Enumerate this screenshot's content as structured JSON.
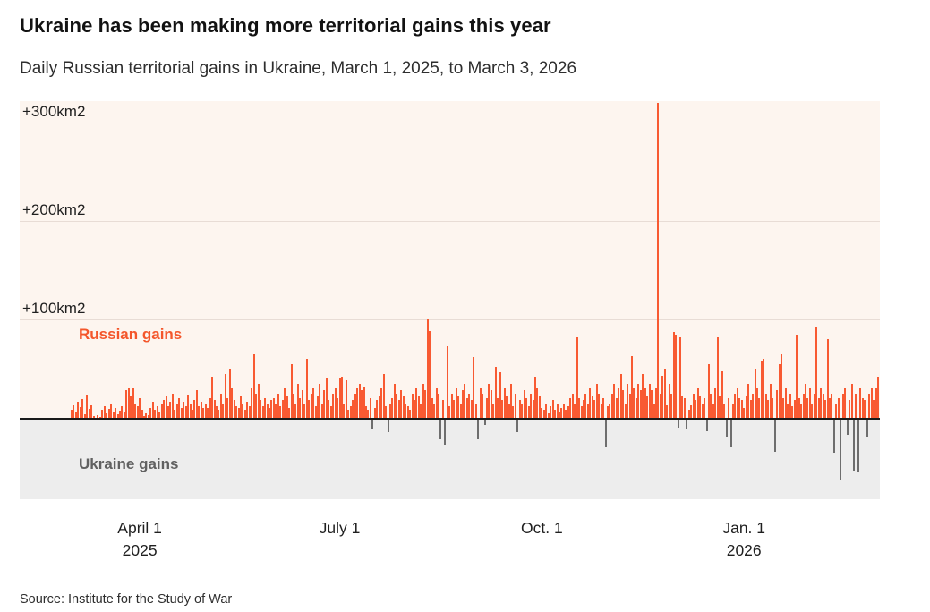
{
  "header": {
    "title": "Ukraine has been making more territorial gains this year",
    "subtitle": "Daily Russian territorial gains in Ukraine, March 1, 2025, to March 3, 2026"
  },
  "source": "Source: Institute for the Study of War",
  "colors": {
    "russian_bar": "#f85a32",
    "ukraine_bar": "#6e6e6e",
    "positive_area_bg": "#fdf5ef",
    "negative_area_bg": "#ededed",
    "gridline": "#e8dcd5",
    "zero_line": "#1a1a1a"
  },
  "chart_data": {
    "type": "bar",
    "title": "Ukraine has been making more territorial gains this year",
    "subtitle": "Daily Russian territorial gains in Ukraine, March 1, 2025, to March 3, 2026",
    "unit": "km2",
    "value_semantics": "daily net territorial change; positive = Russian gains (orange), negative = Ukraine gains (gray)",
    "x_range": [
      "March 1, 2025",
      "March 3, 2026"
    ],
    "ylim": [
      -100,
      330
    ],
    "grid": "horizontal",
    "legend": {
      "positive_label": "Russian gains",
      "negative_label": "Ukraine gains"
    },
    "yticks": [
      {
        "label": "+300km2",
        "km": 300
      },
      {
        "label": "+200km2",
        "km": 200
      },
      {
        "label": "+100km2",
        "km": 100
      }
    ],
    "xticks": [
      {
        "label": "April 1",
        "sub": "2025",
        "day": 31
      },
      {
        "label": "July 1",
        "sub": "",
        "day": 122
      },
      {
        "label": "Oct. 1",
        "sub": "",
        "day": 214
      },
      {
        "label": "Jan. 1",
        "sub": "2026",
        "day": 306
      }
    ],
    "values": [
      8,
      13,
      6,
      16,
      11,
      19,
      4,
      24,
      9,
      13,
      2,
      0,
      3,
      1,
      8,
      12,
      5,
      9,
      14,
      6,
      10,
      4,
      7,
      12,
      6,
      28,
      30,
      22,
      30,
      14,
      12,
      20,
      8,
      2,
      5,
      3,
      10,
      16,
      8,
      12,
      6,
      14,
      18,
      22,
      12,
      16,
      25,
      8,
      14,
      20,
      10,
      16,
      12,
      24,
      15,
      8,
      18,
      28,
      12,
      16,
      10,
      15,
      10,
      20,
      42,
      18,
      12,
      8,
      25,
      15,
      45,
      20,
      50,
      30,
      18,
      12,
      10,
      22,
      14,
      8,
      16,
      12,
      30,
      65,
      25,
      35,
      18,
      12,
      20,
      15,
      10,
      18,
      20,
      15,
      25,
      12,
      18,
      30,
      22,
      10,
      55,
      25,
      15,
      35,
      20,
      28,
      14,
      60,
      18,
      25,
      30,
      12,
      22,
      35,
      15,
      28,
      40,
      18,
      12,
      25,
      30,
      20,
      40,
      42,
      15,
      38,
      8,
      12,
      18,
      25,
      30,
      35,
      28,
      32,
      12,
      8,
      20,
      -10,
      10,
      18,
      22,
      30,
      45,
      12,
      -13,
      15,
      20,
      35,
      25,
      18,
      28,
      22,
      15,
      12,
      8,
      25,
      18,
      30,
      22,
      15,
      35,
      28,
      100,
      88,
      20,
      15,
      30,
      25,
      -20,
      18,
      -25,
      73,
      12,
      25,
      18,
      30,
      22,
      15,
      28,
      35,
      20,
      25,
      18,
      62,
      15,
      -20,
      30,
      25,
      -5,
      20,
      35,
      28,
      15,
      52,
      20,
      46,
      18,
      30,
      22,
      15,
      35,
      12,
      25,
      -13,
      18,
      15,
      28,
      20,
      12,
      25,
      18,
      42,
      30,
      22,
      10,
      8,
      15,
      5,
      12,
      18,
      8,
      14,
      6,
      10,
      15,
      8,
      12,
      20,
      25,
      15,
      82,
      20,
      12,
      18,
      25,
      15,
      30,
      22,
      18,
      35,
      25,
      15,
      20,
      -28,
      12,
      15,
      25,
      35,
      20,
      30,
      45,
      28,
      15,
      35,
      25,
      63,
      30,
      20,
      35,
      28,
      45,
      30,
      22,
      35,
      28,
      15,
      30,
      320,
      25,
      43,
      50,
      13,
      35,
      25,
      87,
      85,
      -8,
      82,
      22,
      20,
      -10,
      8,
      13,
      25,
      18,
      30,
      22,
      15,
      20,
      -12,
      55,
      25,
      15,
      30,
      82,
      22,
      47,
      15,
      -17,
      20,
      -28,
      15,
      25,
      30,
      20,
      18,
      10,
      22,
      35,
      18,
      25,
      50,
      30,
      20,
      58,
      60,
      25,
      18,
      35,
      20,
      -33,
      28,
      55,
      65,
      20,
      30,
      15,
      25,
      12,
      18,
      85,
      20,
      15,
      25,
      35,
      20,
      30,
      15,
      25,
      92,
      20,
      30,
      25,
      18,
      80,
      20,
      25,
      -34,
      15,
      20,
      -61,
      25,
      30,
      -15,
      18,
      35,
      -52,
      25,
      -53,
      30,
      20,
      18,
      -17,
      25,
      30,
      18,
      30,
      42
    ]
  }
}
